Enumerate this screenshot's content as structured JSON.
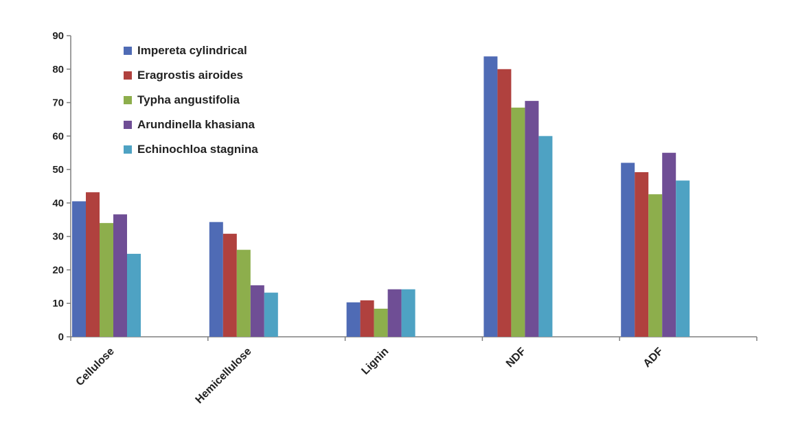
{
  "chart_data": {
    "type": "bar",
    "title": "",
    "xlabel": "",
    "ylabel": "",
    "ylim": [
      0,
      90
    ],
    "yticks": [
      0,
      10,
      20,
      30,
      40,
      50,
      60,
      70,
      80,
      90
    ],
    "categories": [
      "Cellulose",
      "Hemicellulose",
      "Lignin",
      "NDF",
      "ADF"
    ],
    "legend_position": "top-left",
    "grid": false,
    "series": [
      {
        "name": "Impereta cylindrical",
        "color": "#4F6BB5",
        "values": [
          40.5,
          34.3,
          10.3,
          83.8,
          52.0
        ]
      },
      {
        "name": "Eragrostis airoides",
        "color": "#B0413E",
        "values": [
          43.2,
          30.8,
          10.9,
          80.0,
          49.2
        ]
      },
      {
        "name": "Typha angustifolia",
        "color": "#8DAE4C",
        "values": [
          34.0,
          26.0,
          8.4,
          68.5,
          42.6
        ]
      },
      {
        "name": "Arundinella khasiana",
        "color": "#6F4E95",
        "values": [
          36.6,
          15.4,
          14.2,
          70.5,
          55.0
        ]
      },
      {
        "name": "Echinochloa stagnina",
        "color": "#4EA2C3",
        "values": [
          24.8,
          13.2,
          14.2,
          60.0,
          46.7
        ]
      }
    ]
  }
}
